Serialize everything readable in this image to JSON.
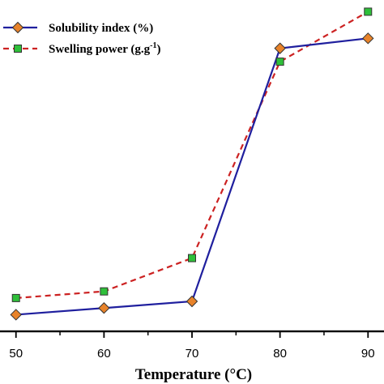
{
  "chart_data": {
    "type": "line",
    "title": "",
    "xlabel": "Temperature (°C)",
    "ylabel": "",
    "x": [
      50,
      60,
      70,
      80,
      90
    ],
    "xlim": [
      48,
      92
    ],
    "ylim": [
      0,
      100
    ],
    "x_ticks": [
      "50",
      "60",
      "70",
      "80",
      "90"
    ],
    "series": [
      {
        "name": "Solubility index (%)",
        "values": [
          5,
          7,
          9,
          85,
          88
        ],
        "color": "#1f1f9e",
        "line_style": "solid",
        "marker": "diamond",
        "marker_color": "#e8832a"
      },
      {
        "name": "Swelling power (g.g",
        "name_superscript": "-1",
        "name_suffix": ")",
        "values": [
          10,
          12,
          22,
          81,
          96
        ],
        "color": "#cc2222",
        "line_style": "dashed",
        "marker": "square",
        "marker_color": "#2fbf3a"
      }
    ],
    "legend_position": "top-left",
    "grid": false
  }
}
